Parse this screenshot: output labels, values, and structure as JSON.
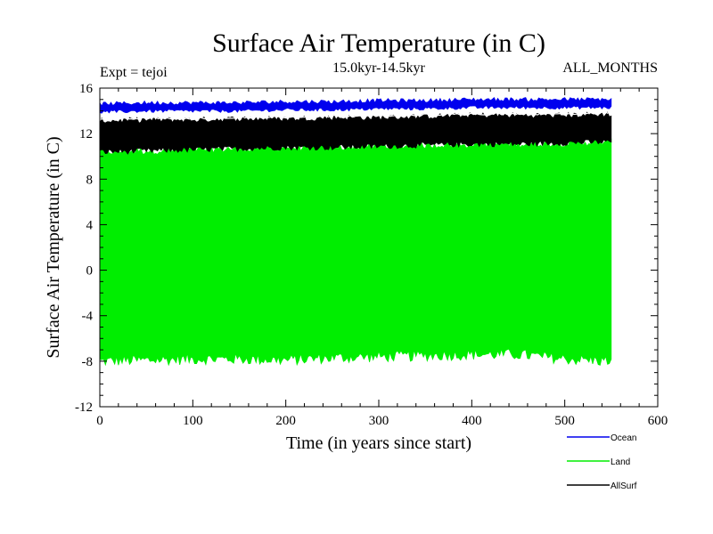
{
  "chart_data": {
    "type": "line",
    "title": "Surface Air Temperature (in C)",
    "subtitle": "15.0kyr-14.5kyr",
    "expt_label": "Expt = tejoi",
    "months_label": "ALL_MONTHS",
    "xlabel": "Time (in years since start)",
    "ylabel": "Surface Air Temperature (in C)",
    "xlim": [
      0,
      600
    ],
    "ylim": [
      -12,
      16
    ],
    "x_ticks": [
      0,
      100,
      200,
      300,
      400,
      500,
      600
    ],
    "y_ticks": [
      -12,
      -8,
      -4,
      0,
      4,
      8,
      12,
      16
    ],
    "x_tick_labels": [
      "0",
      "100",
      "200",
      "300",
      "400",
      "500",
      "600"
    ],
    "y_tick_labels": [
      "-12",
      "-8",
      "-4",
      "0",
      "4",
      "8",
      "12",
      "16"
    ],
    "x_end": 550,
    "series": [
      {
        "name": "Land",
        "color": "#00ee00",
        "x": [
          0,
          50,
          100,
          150,
          200,
          250,
          300,
          350,
          400,
          450,
          500,
          550
        ],
        "min": [
          -8.0,
          -7.9,
          -7.8,
          -7.8,
          -7.9,
          -7.7,
          -7.6,
          -7.5,
          -7.4,
          -7.4,
          -7.8,
          -8.0
        ],
        "max": [
          10.4,
          10.5,
          10.6,
          10.7,
          10.8,
          10.8,
          10.9,
          11.0,
          11.1,
          11.1,
          11.2,
          11.3
        ]
      },
      {
        "name": "AllSurf",
        "color": "#000000",
        "x": [
          0,
          50,
          100,
          150,
          200,
          250,
          300,
          350,
          400,
          450,
          500,
          550
        ],
        "min": [
          10.4,
          10.5,
          10.6,
          10.7,
          10.8,
          10.8,
          10.9,
          11.0,
          11.1,
          11.1,
          11.2,
          11.3
        ],
        "max": [
          13.1,
          13.2,
          13.2,
          13.3,
          13.3,
          13.4,
          13.4,
          13.5,
          13.6,
          13.6,
          13.6,
          13.7
        ]
      },
      {
        "name": "Ocean",
        "color": "#0000ee",
        "x": [
          0,
          50,
          100,
          150,
          200,
          250,
          300,
          350,
          400,
          450,
          500,
          550
        ],
        "min": [
          13.9,
          14.0,
          14.0,
          14.0,
          14.1,
          14.1,
          14.2,
          14.2,
          14.3,
          14.3,
          14.3,
          14.3
        ],
        "max": [
          14.6,
          14.7,
          14.7,
          14.7,
          14.8,
          14.8,
          14.9,
          14.9,
          15.0,
          15.0,
          15.0,
          15.0
        ]
      }
    ],
    "legend": [
      {
        "name": "Ocean",
        "color": "#0000ee"
      },
      {
        "name": "Land",
        "color": "#00ee00"
      },
      {
        "name": "AllSurf",
        "color": "#000000"
      }
    ]
  }
}
